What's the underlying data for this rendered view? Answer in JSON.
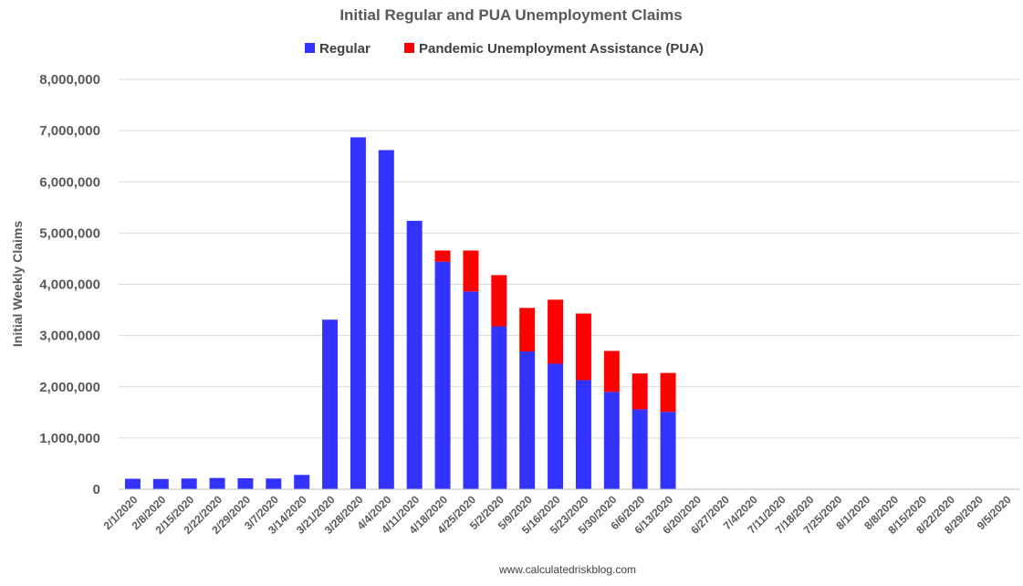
{
  "chart_data": {
    "type": "bar",
    "stacked": true,
    "title": "Initial Regular and PUA Unemployment Claims",
    "ylabel": "Initial Weekly Claims",
    "source": "www.calculatedriskblog.com",
    "ylim": [
      0,
      8000000
    ],
    "yticks": [
      0,
      1000000,
      2000000,
      3000000,
      4000000,
      5000000,
      6000000,
      7000000,
      8000000
    ],
    "ytick_labels": [
      "0",
      "1,000,000",
      "2,000,000",
      "3,000,000",
      "4,000,000",
      "5,000,000",
      "6,000,000",
      "7,000,000",
      "8,000,000"
    ],
    "grid": true,
    "legend_position": "top-center",
    "categories": [
      "2/1/2020",
      "2/8/2020",
      "2/15/2020",
      "2/22/2020",
      "2/29/2020",
      "3/7/2020",
      "3/14/2020",
      "3/21/2020",
      "3/28/2020",
      "4/4/2020",
      "4/11/2020",
      "4/18/2020",
      "4/25/2020",
      "5/2/2020",
      "5/9/2020",
      "5/16/2020",
      "5/23/2020",
      "5/30/2020",
      "6/6/2020",
      "6/13/2020",
      "6/20/2020",
      "6/27/2020",
      "7/4/2020",
      "7/11/2020",
      "7/18/2020",
      "7/25/2020",
      "8/1/2020",
      "8/8/2020",
      "8/15/2020",
      "8/22/2020",
      "8/29/2020",
      "9/5/2020"
    ],
    "series": [
      {
        "name": "Regular",
        "color": "#3333ff",
        "values": [
          205000,
          200000,
          210000,
          220000,
          215000,
          210000,
          280000,
          3310000,
          6870000,
          6620000,
          5240000,
          4440000,
          3860000,
          3180000,
          2690000,
          2450000,
          2130000,
          1900000,
          1560000,
          1510000,
          null,
          null,
          null,
          null,
          null,
          null,
          null,
          null,
          null,
          null,
          null,
          null
        ]
      },
      {
        "name": "Pandemic Unemployment Assistance (PUA)",
        "color": "#ff0000",
        "values": [
          0,
          0,
          0,
          0,
          0,
          0,
          0,
          0,
          0,
          0,
          0,
          220000,
          800000,
          1000000,
          850000,
          1250000,
          1300000,
          800000,
          700000,
          760000,
          null,
          null,
          null,
          null,
          null,
          null,
          null,
          null,
          null,
          null,
          null,
          null
        ]
      }
    ]
  }
}
